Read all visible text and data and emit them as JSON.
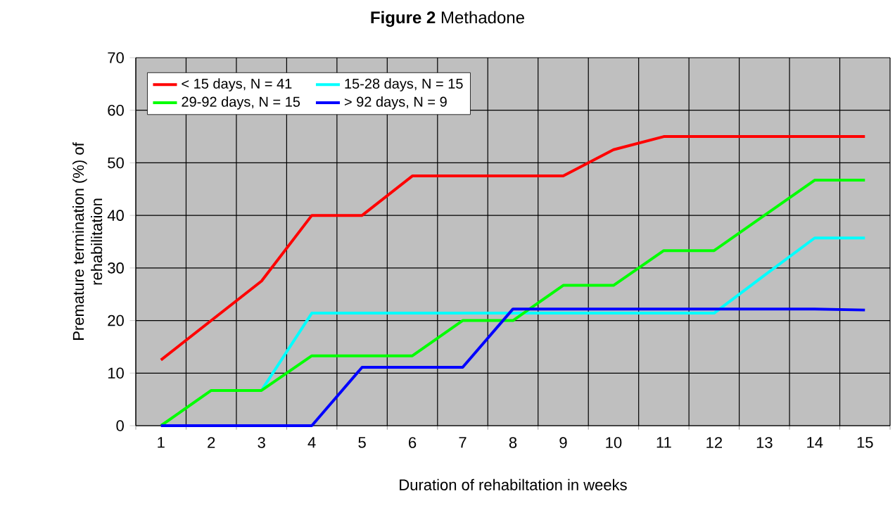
{
  "chart_data": {
    "type": "line",
    "title": "**Figure 2**  Methadone",
    "xlabel": "Duration of rehabiltation in weeks",
    "ylabel": "Premature termination (%) of rehabilitation",
    "categories": [
      "1",
      "2",
      "3",
      "4",
      "5",
      "6",
      "7",
      "8",
      "9",
      "10",
      "11",
      "12",
      "13",
      "14",
      "15"
    ],
    "series": [
      {
        "name": "< 15 days, N = 41",
        "color": "#ff0000",
        "values": [
          12.5,
          20,
          27.5,
          40,
          40,
          47.5,
          47.5,
          47.5,
          47.5,
          52.5,
          55,
          55,
          55,
          55,
          55
        ]
      },
      {
        "name": "15-28 days, N = 15",
        "color": "#00ffff",
        "values": [
          null,
          null,
          6.7,
          21.4,
          21.4,
          21.4,
          21.4,
          21.4,
          21.4,
          21.4,
          21.4,
          21.4,
          28.6,
          35.7,
          35.7
        ]
      },
      {
        "name": "29-92 days, N = 15",
        "color": "#00ff00",
        "values": [
          0,
          6.7,
          6.7,
          13.3,
          13.3,
          13.3,
          20,
          20,
          26.7,
          26.7,
          33.3,
          33.3,
          40,
          46.7,
          46.7
        ]
      },
      {
        "name": "> 92 days, N = 9",
        "color": "#0000ff",
        "values": [
          0,
          0,
          0,
          0,
          11.1,
          11.1,
          11.1,
          22.2,
          22.2,
          22.2,
          22.2,
          22.2,
          22.2,
          22.2,
          22
        ]
      }
    ],
    "ylim": [
      0,
      70
    ],
    "yticks": [
      0,
      10,
      20,
      30,
      40,
      50,
      60,
      70
    ],
    "grid": true,
    "legend": "top left",
    "marker": "none",
    "line_style": "solid"
  }
}
